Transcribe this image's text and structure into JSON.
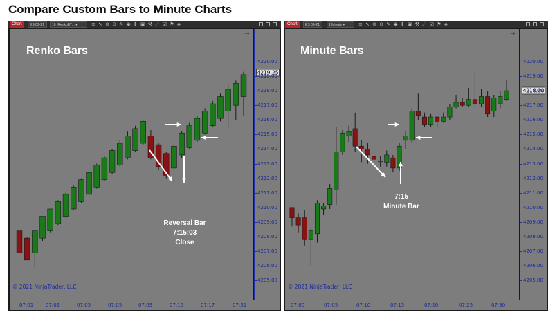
{
  "page": {
    "title": "Compare Custom Bars to Minute Charts"
  },
  "colors": {
    "up": "#1a7a1a",
    "down": "#8b1212",
    "plot_bg": "#7d7d7d",
    "axis_text": "#1a2a9a",
    "arrow": "#ffffff",
    "badge": "#b8262d"
  },
  "panels": [
    {
      "id": "renko",
      "toolbar": {
        "badge": "Chart",
        "instrument": "ES 09-21",
        "period": "10_RenkoBT... ▾",
        "icons": "≡ ↖ ⊕ ⊖ ✎ ◉ ↕ ▣ ⚒ ☄ ☑ ⚑ ◈"
      },
      "chart_label": "Renko Bars",
      "copyright": "© 2021 NinjaTrader, LLC",
      "current_price": "4219.25",
      "annotation": [
        "Reversal Bar",
        "7:15:03",
        "Close"
      ],
      "chart_data": {
        "type": "candlestick",
        "title": "Renko Bars",
        "y_ticks": [
          "4205.00",
          "4206.00",
          "4207.00",
          "4208.00",
          "4209.00",
          "4210.00",
          "4211.00",
          "4212.00",
          "4213.00",
          "4214.00",
          "4215.00",
          "4216.00",
          "4217.00",
          "4218.00",
          "4219.00",
          "4220.00"
        ],
        "x_ticks": [
          "07:01",
          "07:02",
          "07:05",
          "07:05",
          "07:09",
          "07:15",
          "07:17",
          "07:31"
        ],
        "ylim": [
          4204.4,
          4220.8
        ],
        "bars": [
          {
            "o": 4208.4,
            "c": 4206.9,
            "h": 4208.4,
            "l": 4206.9
          },
          {
            "o": 4207.9,
            "c": 4206.4,
            "h": 4208.0,
            "l": 4206.4
          },
          {
            "o": 4206.9,
            "c": 4208.4,
            "h": 4208.4,
            "l": 4205.8
          },
          {
            "o": 4207.9,
            "c": 4209.4,
            "h": 4209.4,
            "l": 4207.7
          },
          {
            "o": 4208.4,
            "c": 4209.9,
            "h": 4209.9,
            "l": 4208.3
          },
          {
            "o": 4208.9,
            "c": 4210.4,
            "h": 4210.5,
            "l": 4208.8
          },
          {
            "o": 4209.4,
            "c": 4210.9,
            "h": 4211.0,
            "l": 4209.3
          },
          {
            "o": 4209.9,
            "c": 4211.4,
            "h": 4211.5,
            "l": 4209.8
          },
          {
            "o": 4210.4,
            "c": 4211.9,
            "h": 4212.0,
            "l": 4210.3
          },
          {
            "o": 4210.9,
            "c": 4212.4,
            "h": 4212.5,
            "l": 4210.8
          },
          {
            "o": 4211.4,
            "c": 4212.9,
            "h": 4213.0,
            "l": 4211.3
          },
          {
            "o": 4211.9,
            "c": 4213.4,
            "h": 4213.5,
            "l": 4211.8
          },
          {
            "o": 4212.4,
            "c": 4213.9,
            "h": 4214.0,
            "l": 4212.3
          },
          {
            "o": 4212.9,
            "c": 4214.4,
            "h": 4214.6,
            "l": 4212.8
          },
          {
            "o": 4213.4,
            "c": 4214.9,
            "h": 4215.2,
            "l": 4213.3
          },
          {
            "o": 4213.9,
            "c": 4215.4,
            "h": 4215.6,
            "l": 4213.8
          },
          {
            "o": 4214.4,
            "c": 4215.9,
            "h": 4216.0,
            "l": 4214.3
          },
          {
            "o": 4214.9,
            "c": 4213.4,
            "h": 4215.3,
            "l": 4213.3
          },
          {
            "o": 4214.3,
            "c": 4212.8,
            "h": 4214.4,
            "l": 4212.6
          },
          {
            "o": 4213.7,
            "c": 4212.2,
            "h": 4213.8,
            "l": 4212.0
          },
          {
            "o": 4212.7,
            "c": 4214.2,
            "h": 4214.4,
            "l": 4211.6
          },
          {
            "o": 4213.6,
            "c": 4215.1,
            "h": 4215.2,
            "l": 4213.4
          },
          {
            "o": 4214.1,
            "c": 4215.6,
            "h": 4215.8,
            "l": 4214.0
          },
          {
            "o": 4214.6,
            "c": 4216.1,
            "h": 4216.3,
            "l": 4214.5
          },
          {
            "o": 4215.1,
            "c": 4216.6,
            "h": 4216.8,
            "l": 4215.0
          },
          {
            "o": 4215.6,
            "c": 4217.1,
            "h": 4217.3,
            "l": 4215.5
          },
          {
            "o": 4216.1,
            "c": 4217.6,
            "h": 4217.8,
            "l": 4215.9
          },
          {
            "o": 4216.6,
            "c": 4218.1,
            "h": 4218.4,
            "l": 4215.5
          },
          {
            "o": 4217.0,
            "c": 4218.5,
            "h": 4218.7,
            "l": 4216.0
          },
          {
            "o": 4217.6,
            "c": 4219.1,
            "h": 4219.3,
            "l": 4216.3
          }
        ]
      }
    },
    {
      "id": "minute",
      "toolbar": {
        "badge": "Chart",
        "instrument": "ES 09-21",
        "period": "1 Minute ▾",
        "icons": "≡ ↖ ⊕ ⊖ ✎ ◉ ↕ ▣ ⚒ ☄ ☑ ⚑ ◈"
      },
      "chart_label": "Minute Bars",
      "copyright": "© 2021 NinjaTrader, LLC",
      "current_price": "4218.00",
      "annotation": [
        "7:15",
        "Minute Bar"
      ],
      "chart_data": {
        "type": "candlestick",
        "title": "Minute Bars",
        "y_ticks": [
          "4205.00",
          "4206.00",
          "4207.00",
          "4208.00",
          "4209.00",
          "4210.00",
          "4211.00",
          "4212.00",
          "4213.00",
          "4214.00",
          "4215.00",
          "4216.00",
          "4217.00",
          "4218.00",
          "4219.00",
          "4220.00"
        ],
        "x_ticks": [
          "07:00",
          "07:05",
          "07:10",
          "07:15",
          "07:20",
          "07:25",
          "07:30"
        ],
        "ylim": [
          4204.4,
          4220.8
        ],
        "bars": [
          {
            "o": 4210.0,
            "c": 4209.3,
            "h": 4210.0,
            "l": 4208.7
          },
          {
            "o": 4209.3,
            "c": 4208.8,
            "h": 4209.6,
            "l": 4208.3
          },
          {
            "o": 4209.3,
            "c": 4207.8,
            "h": 4209.8,
            "l": 4207.4
          },
          {
            "o": 4207.8,
            "c": 4208.4,
            "h": 4208.6,
            "l": 4206.0
          },
          {
            "o": 4208.2,
            "c": 4210.3,
            "h": 4210.5,
            "l": 4207.6
          },
          {
            "o": 4209.9,
            "c": 4210.1,
            "h": 4210.3,
            "l": 4209.5
          },
          {
            "o": 4210.2,
            "c": 4211.3,
            "h": 4211.6,
            "l": 4209.9
          },
          {
            "o": 4211.2,
            "c": 4213.8,
            "h": 4215.5,
            "l": 4210.2
          },
          {
            "o": 4213.8,
            "c": 4215.1,
            "h": 4215.3,
            "l": 4213.6
          },
          {
            "o": 4214.9,
            "c": 4215.2,
            "h": 4215.6,
            "l": 4214.5
          },
          {
            "o": 4215.4,
            "c": 4214.2,
            "h": 4216.5,
            "l": 4213.8
          },
          {
            "o": 4214.2,
            "c": 4214.0,
            "h": 4214.6,
            "l": 4213.1
          },
          {
            "o": 4214.0,
            "c": 4213.6,
            "h": 4214.4,
            "l": 4213.0
          },
          {
            "o": 4213.5,
            "c": 4213.3,
            "h": 4213.8,
            "l": 4213.0
          },
          {
            "o": 4213.2,
            "c": 4213.2,
            "h": 4213.5,
            "l": 4212.8
          },
          {
            "o": 4213.1,
            "c": 4213.6,
            "h": 4213.9,
            "l": 4212.8
          },
          {
            "o": 4213.4,
            "c": 4212.7,
            "h": 4213.6,
            "l": 4212.4
          },
          {
            "o": 4212.7,
            "c": 4214.2,
            "h": 4214.4,
            "l": 4212.5
          },
          {
            "o": 4214.6,
            "c": 4214.9,
            "h": 4215.2,
            "l": 4214.0
          },
          {
            "o": 4214.6,
            "c": 4216.6,
            "h": 4216.8,
            "l": 4214.4
          },
          {
            "o": 4216.6,
            "c": 4216.3,
            "h": 4217.8,
            "l": 4216.0
          },
          {
            "o": 4216.2,
            "c": 4215.7,
            "h": 4216.5,
            "l": 4215.5
          },
          {
            "o": 4215.7,
            "c": 4216.2,
            "h": 4216.4,
            "l": 4215.5
          },
          {
            "o": 4216.2,
            "c": 4215.9,
            "h": 4216.3,
            "l": 4215.5
          },
          {
            "o": 4215.9,
            "c": 4216.2,
            "h": 4216.5,
            "l": 4215.8
          },
          {
            "o": 4216.2,
            "c": 4216.9,
            "h": 4217.1,
            "l": 4216.0
          },
          {
            "o": 4216.9,
            "c": 4217.2,
            "h": 4217.7,
            "l": 4216.8
          },
          {
            "o": 4217.2,
            "c": 4217.0,
            "h": 4217.5,
            "l": 4216.9
          },
          {
            "o": 4217.0,
            "c": 4217.4,
            "h": 4218.2,
            "l": 4216.9
          },
          {
            "o": 4217.4,
            "c": 4217.1,
            "h": 4219.3,
            "l": 4216.9
          },
          {
            "o": 4217.1,
            "c": 4217.6,
            "h": 4218.1,
            "l": 4216.9
          },
          {
            "o": 4217.6,
            "c": 4216.4,
            "h": 4218.0,
            "l": 4216.2
          },
          {
            "o": 4216.6,
            "c": 4217.5,
            "h": 4217.7,
            "l": 4216.2
          },
          {
            "o": 4217.1,
            "c": 4217.6,
            "h": 4218.0,
            "l": 4216.8
          },
          {
            "o": 4217.4,
            "c": 4218.0,
            "h": 4218.7,
            "l": 4217.3
          }
        ]
      }
    }
  ]
}
